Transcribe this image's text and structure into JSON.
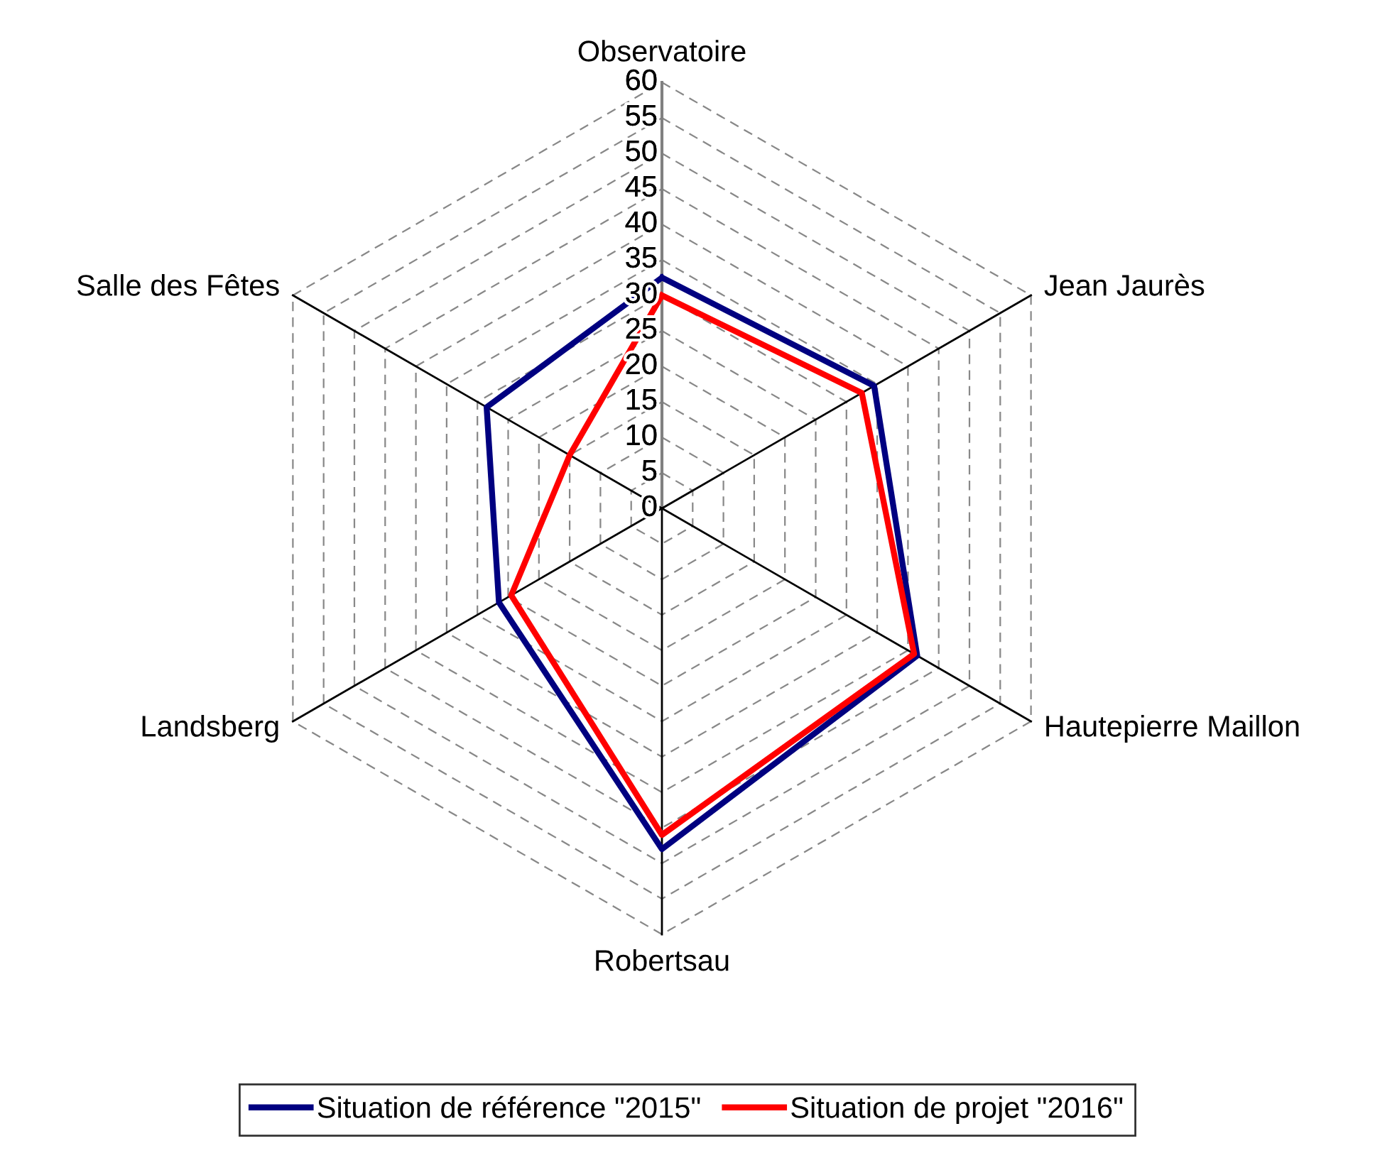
{
  "chart_data": {
    "type": "radar",
    "categories": [
      "Observatoire",
      "Jean Jaurès",
      "Hautepierre Maillon",
      "Robertsau",
      "Landsberg",
      "Salle des Fêtes"
    ],
    "series": [
      {
        "name": "Situation de référence \"2015\"",
        "color": "#000080",
        "values": [
          32.5,
          34.5,
          41.5,
          48,
          26.5,
          28.5
        ]
      },
      {
        "name": "Situation de projet \"2016\"",
        "color": "#ff0000",
        "values": [
          30,
          32.5,
          41,
          46,
          24.5,
          15
        ]
      }
    ],
    "ylim": [
      0,
      60
    ],
    "yticks": [
      0,
      5,
      10,
      15,
      20,
      25,
      30,
      35,
      40,
      45,
      50,
      55,
      60
    ],
    "grid": true,
    "legend": "bottom",
    "marker": "none",
    "line_style": "solid"
  }
}
